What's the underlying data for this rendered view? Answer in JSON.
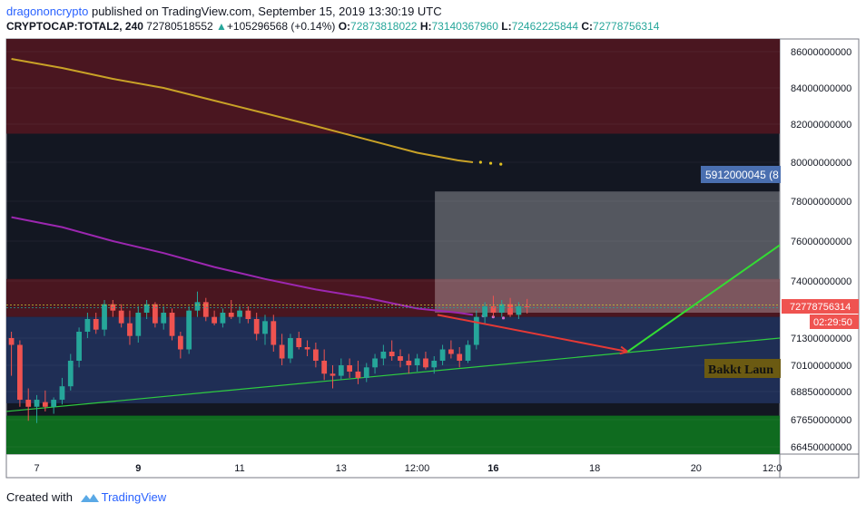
{
  "header": {
    "username": "dragononcrypto",
    "published_text": "published on TradingView.com, September 15, 2019 13:30:19 UTC",
    "symbol": "CRYPTOCAP:TOTAL2, 240",
    "last_value": "72780518552",
    "change": "+105296568 (+0.14%)",
    "open_label": "O:",
    "open": "72873818022",
    "high_label": "H:",
    "high": "73140367960",
    "low_label": "L:",
    "low": "72462225844",
    "close_label": "C:",
    "close": "72778756314"
  },
  "footer": {
    "created_with": "Created with",
    "brand": "TradingView"
  },
  "colors": {
    "background": "#131722",
    "up": "#26a69a",
    "down": "#ef5350",
    "resistance_zone": "#4a1620",
    "support_zone": "#0f6b1f",
    "range_zone": "#1f2e55",
    "ma_long": "#c9a227",
    "ma_short": "#9c27b0",
    "trendline": "#2ecc40",
    "projection_down": "#e53935",
    "projection_up": "#33dd33"
  },
  "chart_data": {
    "type": "candlestick",
    "y_axis_labels": [
      "86000000000",
      "84000000000",
      "82000000000",
      "80000000000",
      "78000000000",
      "76000000000",
      "74000000000",
      "71300000000",
      "70100000000",
      "68850000000",
      "67650000000",
      "66450000000"
    ],
    "y_axis_values": [
      86000000000,
      84000000000,
      82000000000,
      80000000000,
      78000000000,
      76000000000,
      74000000000,
      71300000000,
      70100000000,
      68850000000,
      67650000000,
      66450000000
    ],
    "x_axis_labels": [
      {
        "text": "7",
        "day": 7.0,
        "bold": false
      },
      {
        "text": "9",
        "day": 9.0,
        "bold": true
      },
      {
        "text": "11",
        "day": 11.0,
        "bold": false
      },
      {
        "text": "13",
        "day": 13.0,
        "bold": false
      },
      {
        "text": "12:00",
        "day": 14.5,
        "bold": false
      },
      {
        "text": "16",
        "day": 16.0,
        "bold": true
      },
      {
        "text": "18",
        "day": 18.0,
        "bold": false
      },
      {
        "text": "20",
        "day": 20.0,
        "bold": false
      },
      {
        "text": "12:0",
        "day": 21.5,
        "bold": false
      }
    ],
    "x_range_days": [
      6.4,
      21.65
    ],
    "price_label": "72778756314",
    "countdown_label": "02:29:50",
    "measure_label": "5912000045 (8",
    "annotation": "Bakkt Laun",
    "bar_step_days": 0.1667,
    "first_bar_day": 6.5,
    "candles": [
      {
        "o": 71.3,
        "h": 71.6,
        "l": 69.6,
        "c": 71.0
      },
      {
        "o": 71.0,
        "h": 71.2,
        "l": 68.2,
        "c": 68.5
      },
      {
        "o": 68.5,
        "h": 69.0,
        "l": 67.6,
        "c": 68.2
      },
      {
        "o": 68.2,
        "h": 68.7,
        "l": 67.5,
        "c": 68.5
      },
      {
        "o": 68.4,
        "h": 68.9,
        "l": 68.0,
        "c": 68.2
      },
      {
        "o": 68.2,
        "h": 68.6,
        "l": 67.9,
        "c": 68.5
      },
      {
        "o": 68.5,
        "h": 69.5,
        "l": 68.3,
        "c": 69.1
      },
      {
        "o": 69.1,
        "h": 70.6,
        "l": 68.9,
        "c": 70.3
      },
      {
        "o": 70.3,
        "h": 71.8,
        "l": 70.0,
        "c": 71.6
      },
      {
        "o": 71.6,
        "h": 72.5,
        "l": 71.3,
        "c": 72.2
      },
      {
        "o": 72.2,
        "h": 72.5,
        "l": 71.5,
        "c": 71.7
      },
      {
        "o": 71.7,
        "h": 73.1,
        "l": 71.4,
        "c": 72.9
      },
      {
        "o": 72.9,
        "h": 73.1,
        "l": 72.3,
        "c": 72.6
      },
      {
        "o": 72.6,
        "h": 72.9,
        "l": 71.8,
        "c": 72.0
      },
      {
        "o": 72.0,
        "h": 72.6,
        "l": 71.0,
        "c": 71.4
      },
      {
        "o": 71.4,
        "h": 72.8,
        "l": 71.1,
        "c": 72.5
      },
      {
        "o": 72.5,
        "h": 73.1,
        "l": 72.2,
        "c": 72.9
      },
      {
        "o": 72.9,
        "h": 73.0,
        "l": 71.8,
        "c": 72.0
      },
      {
        "o": 72.0,
        "h": 72.8,
        "l": 71.7,
        "c": 72.5
      },
      {
        "o": 72.5,
        "h": 72.7,
        "l": 71.2,
        "c": 71.4
      },
      {
        "o": 71.4,
        "h": 71.6,
        "l": 70.4,
        "c": 70.8
      },
      {
        "o": 70.8,
        "h": 72.8,
        "l": 70.6,
        "c": 72.6
      },
      {
        "o": 72.6,
        "h": 73.5,
        "l": 72.3,
        "c": 73.0
      },
      {
        "o": 73.0,
        "h": 73.2,
        "l": 72.1,
        "c": 72.3
      },
      {
        "o": 72.3,
        "h": 72.6,
        "l": 71.9,
        "c": 72.0
      },
      {
        "o": 72.0,
        "h": 72.7,
        "l": 71.8,
        "c": 72.5
      },
      {
        "o": 72.5,
        "h": 73.1,
        "l": 72.2,
        "c": 72.3
      },
      {
        "o": 72.3,
        "h": 72.8,
        "l": 72.0,
        "c": 72.6
      },
      {
        "o": 72.6,
        "h": 72.8,
        "l": 72.0,
        "c": 72.2
      },
      {
        "o": 72.2,
        "h": 72.5,
        "l": 71.2,
        "c": 71.5
      },
      {
        "o": 71.5,
        "h": 72.4,
        "l": 71.0,
        "c": 72.1
      },
      {
        "o": 72.1,
        "h": 72.4,
        "l": 70.7,
        "c": 71.0
      },
      {
        "o": 71.0,
        "h": 71.5,
        "l": 70.1,
        "c": 70.4
      },
      {
        "o": 70.4,
        "h": 71.5,
        "l": 70.2,
        "c": 71.3
      },
      {
        "o": 71.3,
        "h": 71.6,
        "l": 70.8,
        "c": 70.9
      },
      {
        "o": 70.9,
        "h": 71.2,
        "l": 70.5,
        "c": 70.8
      },
      {
        "o": 70.8,
        "h": 71.1,
        "l": 70.0,
        "c": 70.3
      },
      {
        "o": 70.3,
        "h": 70.8,
        "l": 69.4,
        "c": 69.7
      },
      {
        "o": 69.7,
        "h": 70.1,
        "l": 69.0,
        "c": 69.6
      },
      {
        "o": 69.6,
        "h": 70.4,
        "l": 69.4,
        "c": 70.1
      },
      {
        "o": 70.1,
        "h": 70.4,
        "l": 69.5,
        "c": 69.8
      },
      {
        "o": 69.8,
        "h": 70.3,
        "l": 69.2,
        "c": 69.5
      },
      {
        "o": 69.5,
        "h": 70.2,
        "l": 69.3,
        "c": 70.0
      },
      {
        "o": 70.0,
        "h": 70.6,
        "l": 69.7,
        "c": 70.4
      },
      {
        "o": 70.4,
        "h": 71.0,
        "l": 70.1,
        "c": 70.7
      },
      {
        "o": 70.7,
        "h": 71.2,
        "l": 70.3,
        "c": 70.5
      },
      {
        "o": 70.5,
        "h": 70.8,
        "l": 70.0,
        "c": 70.3
      },
      {
        "o": 70.3,
        "h": 70.6,
        "l": 69.7,
        "c": 70.1
      },
      {
        "o": 70.1,
        "h": 70.6,
        "l": 69.8,
        "c": 70.4
      },
      {
        "o": 70.4,
        "h": 70.7,
        "l": 69.9,
        "c": 70.0
      },
      {
        "o": 70.0,
        "h": 70.5,
        "l": 69.7,
        "c": 70.3
      },
      {
        "o": 70.3,
        "h": 71.0,
        "l": 70.1,
        "c": 70.8
      },
      {
        "o": 70.8,
        "h": 71.2,
        "l": 70.4,
        "c": 70.6
      },
      {
        "o": 70.6,
        "h": 70.9,
        "l": 70.0,
        "c": 70.3
      },
      {
        "o": 70.3,
        "h": 71.2,
        "l": 70.2,
        "c": 71.0
      },
      {
        "o": 71.0,
        "h": 72.6,
        "l": 70.8,
        "c": 72.3
      },
      {
        "o": 72.3,
        "h": 73.0,
        "l": 72.0,
        "c": 72.8
      },
      {
        "o": 72.8,
        "h": 73.3,
        "l": 72.3,
        "c": 72.5
      },
      {
        "o": 72.5,
        "h": 73.1,
        "l": 72.3,
        "c": 72.9
      },
      {
        "o": 72.9,
        "h": 73.2,
        "l": 72.3,
        "c": 72.4
      },
      {
        "o": 72.4,
        "h": 73.0,
        "l": 72.2,
        "c": 72.8
      },
      {
        "o": 72.8,
        "h": 73.15,
        "l": 72.46,
        "c": 72.78
      }
    ],
    "ma_long": [
      [
        6.5,
        85.6
      ],
      [
        7.5,
        85.1
      ],
      [
        8.5,
        84.5
      ],
      [
        9.5,
        84.0
      ],
      [
        10.5,
        83.3
      ],
      [
        11.5,
        82.6
      ],
      [
        12.5,
        81.9
      ],
      [
        13.5,
        81.2
      ],
      [
        14.5,
        80.5
      ],
      [
        15.3,
        80.1
      ],
      [
        15.6,
        80.0
      ]
    ],
    "ma_long_dots": [
      [
        15.75,
        80.0
      ],
      [
        15.95,
        79.95
      ],
      [
        16.15,
        79.9
      ]
    ],
    "ma_short": [
      [
        6.5,
        77.2
      ],
      [
        7.5,
        76.7
      ],
      [
        8.5,
        76.0
      ],
      [
        9.5,
        75.4
      ],
      [
        10.5,
        74.7
      ],
      [
        11.5,
        74.1
      ],
      [
        12.5,
        73.6
      ],
      [
        13.5,
        73.2
      ],
      [
        14.5,
        72.7
      ],
      [
        15.3,
        72.5
      ],
      [
        15.6,
        72.4
      ]
    ],
    "ma_short_dots": [
      [
        15.8,
        72.35
      ],
      [
        16.0,
        72.3
      ],
      [
        16.2,
        72.25
      ]
    ],
    "zones": [
      {
        "name": "resistance-zone-upper",
        "y1": 81.5,
        "y2": 86.6,
        "color": "#4a1620"
      },
      {
        "name": "resistance-zone-lower",
        "y1": 72.3,
        "y2": 74.1,
        "color": "#4a1620"
      },
      {
        "name": "range-zone",
        "y1": 68.35,
        "y2": 72.3,
        "color": "#1f2e55"
      },
      {
        "name": "support-zone",
        "y1": 66.15,
        "y2": 67.82,
        "color": "#0f6b1f"
      }
    ],
    "measure_box": {
      "x1": 14.85,
      "x2": 21.65,
      "y1": 72.5,
      "y2": 78.5
    },
    "trendline": [
      [
        6.4,
        68.0
      ],
      [
        21.65,
        71.3
      ]
    ],
    "projection_down": [
      [
        14.9,
        72.4
      ],
      [
        18.65,
        70.7
      ]
    ],
    "projection_up": [
      [
        18.65,
        70.7
      ],
      [
        21.65,
        75.8
      ]
    ]
  }
}
